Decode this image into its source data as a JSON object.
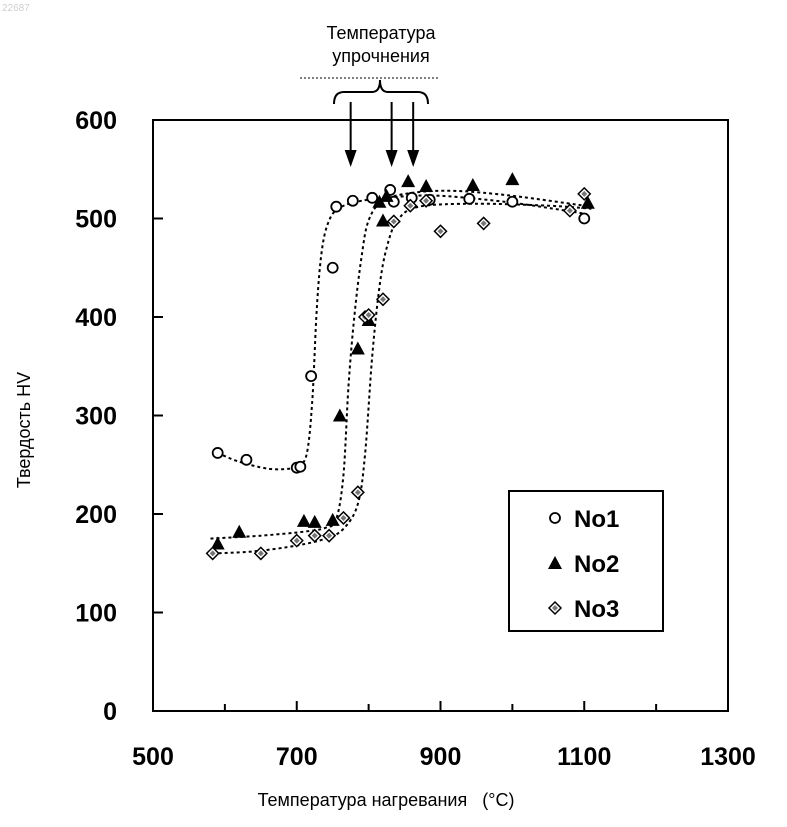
{
  "corner_label": "22687",
  "chart_data": {
    "type": "scatter",
    "title": "",
    "xlabel": "Температура нагревания",
    "xlabel_unit": "(°C)",
    "ylabel": "Твердость HV",
    "xlim": [
      500,
      1300
    ],
    "ylim": [
      0,
      600
    ],
    "x_ticks": [
      500,
      700,
      900,
      1100,
      1300
    ],
    "y_ticks": [
      0,
      100,
      200,
      300,
      400,
      500,
      600
    ],
    "grid": false,
    "legend_position": "bottom-right",
    "annotation": {
      "line1": "Температура",
      "line2": "упрочнения",
      "arrow_x": [
        775,
        832,
        862
      ]
    },
    "series": [
      {
        "name": "No1",
        "marker": "circle-open",
        "points": [
          [
            590,
            262
          ],
          [
            630,
            255
          ],
          [
            700,
            247
          ],
          [
            705,
            248
          ],
          [
            720,
            340
          ],
          [
            750,
            450
          ],
          [
            755,
            512
          ],
          [
            778,
            518
          ],
          [
            805,
            521
          ],
          [
            830,
            529
          ],
          [
            835,
            517
          ],
          [
            860,
            521
          ],
          [
            885,
            519
          ],
          [
            940,
            520
          ],
          [
            1000,
            517
          ],
          [
            1100,
            500
          ]
        ],
        "curve": [
          [
            590,
            262
          ],
          [
            620,
            253
          ],
          [
            660,
            246
          ],
          [
            690,
            246
          ],
          [
            705,
            249
          ],
          [
            715,
            265
          ],
          [
            722,
            320
          ],
          [
            728,
            410
          ],
          [
            735,
            468
          ],
          [
            745,
            498
          ],
          [
            760,
            511
          ],
          [
            790,
            518
          ],
          [
            840,
            522
          ],
          [
            900,
            523
          ],
          [
            1000,
            516
          ],
          [
            1100,
            505
          ]
        ]
      },
      {
        "name": "No2",
        "marker": "triangle-filled",
        "points": [
          [
            590,
            170
          ],
          [
            620,
            182
          ],
          [
            710,
            193
          ],
          [
            725,
            192
          ],
          [
            750,
            194
          ],
          [
            760,
            300
          ],
          [
            785,
            368
          ],
          [
            800,
            397
          ],
          [
            820,
            498
          ],
          [
            815,
            517
          ],
          [
            825,
            523
          ],
          [
            855,
            538
          ],
          [
            880,
            533
          ],
          [
            945,
            534
          ],
          [
            1000,
            540
          ],
          [
            1105,
            516
          ]
        ],
        "curve": [
          [
            580,
            175
          ],
          [
            650,
            178
          ],
          [
            710,
            182
          ],
          [
            740,
            186
          ],
          [
            755,
            195
          ],
          [
            765,
            240
          ],
          [
            772,
            330
          ],
          [
            780,
            400
          ],
          [
            790,
            460
          ],
          [
            800,
            498
          ],
          [
            820,
            518
          ],
          [
            860,
            526
          ],
          [
            920,
            528
          ],
          [
            1000,
            523
          ],
          [
            1110,
            512
          ]
        ]
      },
      {
        "name": "No3",
        "marker": "diamond",
        "points": [
          [
            583,
            160
          ],
          [
            650,
            160
          ],
          [
            700,
            173
          ],
          [
            725,
            178
          ],
          [
            745,
            178
          ],
          [
            765,
            196
          ],
          [
            785,
            222
          ],
          [
            795,
            400
          ],
          [
            800,
            402
          ],
          [
            820,
            418
          ],
          [
            835,
            497
          ],
          [
            858,
            513
          ],
          [
            880,
            518
          ],
          [
            900,
            487
          ],
          [
            960,
            495
          ],
          [
            1080,
            508
          ],
          [
            1100,
            525
          ]
        ],
        "curve": [
          [
            583,
            160
          ],
          [
            640,
            162
          ],
          [
            700,
            168
          ],
          [
            740,
            175
          ],
          [
            765,
            185
          ],
          [
            785,
            210
          ],
          [
            795,
            260
          ],
          [
            805,
            360
          ],
          [
            815,
            430
          ],
          [
            825,
            470
          ],
          [
            840,
            498
          ],
          [
            870,
            512
          ],
          [
            950,
            515
          ],
          [
            1050,
            513
          ],
          [
            1110,
            510
          ]
        ]
      }
    ]
  }
}
